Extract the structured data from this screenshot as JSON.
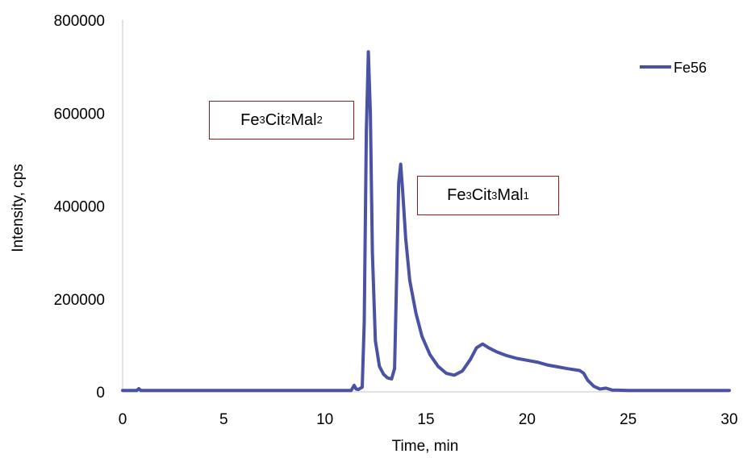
{
  "chart_data": {
    "type": "line",
    "xlabel": "Time, min",
    "ylabel": "Intensity, cps",
    "xlim": [
      0,
      30
    ],
    "ylim": [
      0,
      800000
    ],
    "x_ticks": [
      0,
      5,
      10,
      15,
      20,
      25,
      30
    ],
    "y_ticks": [
      0,
      200000,
      400000,
      600000,
      800000
    ],
    "grid": false,
    "legend": "top-right",
    "series": [
      {
        "name": "Fe56",
        "color": "#4a52a3",
        "points": [
          [
            0,
            3000
          ],
          [
            0.7,
            3000
          ],
          [
            0.8,
            7000
          ],
          [
            0.9,
            3000
          ],
          [
            5,
            3000
          ],
          [
            10,
            3000
          ],
          [
            11.3,
            3000
          ],
          [
            11.45,
            14000
          ],
          [
            11.55,
            6000
          ],
          [
            11.65,
            5000
          ],
          [
            11.85,
            10000
          ],
          [
            11.95,
            150000
          ],
          [
            12.05,
            560000
          ],
          [
            12.15,
            732000
          ],
          [
            12.25,
            600000
          ],
          [
            12.35,
            300000
          ],
          [
            12.5,
            110000
          ],
          [
            12.7,
            55000
          ],
          [
            12.9,
            38000
          ],
          [
            13.1,
            30000
          ],
          [
            13.3,
            28000
          ],
          [
            13.45,
            50000
          ],
          [
            13.55,
            250000
          ],
          [
            13.65,
            450000
          ],
          [
            13.75,
            490000
          ],
          [
            13.85,
            430000
          ],
          [
            14.0,
            330000
          ],
          [
            14.2,
            240000
          ],
          [
            14.5,
            170000
          ],
          [
            14.8,
            120000
          ],
          [
            15.2,
            80000
          ],
          [
            15.6,
            55000
          ],
          [
            16.0,
            40000
          ],
          [
            16.4,
            36000
          ],
          [
            16.8,
            45000
          ],
          [
            17.2,
            70000
          ],
          [
            17.5,
            95000
          ],
          [
            17.8,
            103000
          ],
          [
            18.1,
            95000
          ],
          [
            18.5,
            86000
          ],
          [
            19.0,
            78000
          ],
          [
            19.5,
            72000
          ],
          [
            20.0,
            68000
          ],
          [
            20.5,
            64000
          ],
          [
            21.0,
            58000
          ],
          [
            21.5,
            54000
          ],
          [
            22.0,
            50000
          ],
          [
            22.6,
            46000
          ],
          [
            22.8,
            40000
          ],
          [
            23.0,
            25000
          ],
          [
            23.3,
            12000
          ],
          [
            23.6,
            6000
          ],
          [
            23.9,
            8000
          ],
          [
            24.2,
            4000
          ],
          [
            25,
            3000
          ],
          [
            30,
            3000
          ]
        ]
      }
    ],
    "annotations": [
      {
        "base": "Fe",
        "parts": [
          {
            "t": "Fe"
          },
          {
            "s": "3"
          },
          {
            "t": "Cit"
          },
          {
            "s": "2"
          },
          {
            "t": "Mal"
          },
          {
            "s": "2"
          }
        ]
      },
      {
        "base": "Fe",
        "parts": [
          {
            "t": "Fe"
          },
          {
            "s": "3"
          },
          {
            "t": "Cit"
          },
          {
            "s": "3"
          },
          {
            "t": "Mal"
          },
          {
            "s": "1"
          }
        ]
      }
    ]
  }
}
